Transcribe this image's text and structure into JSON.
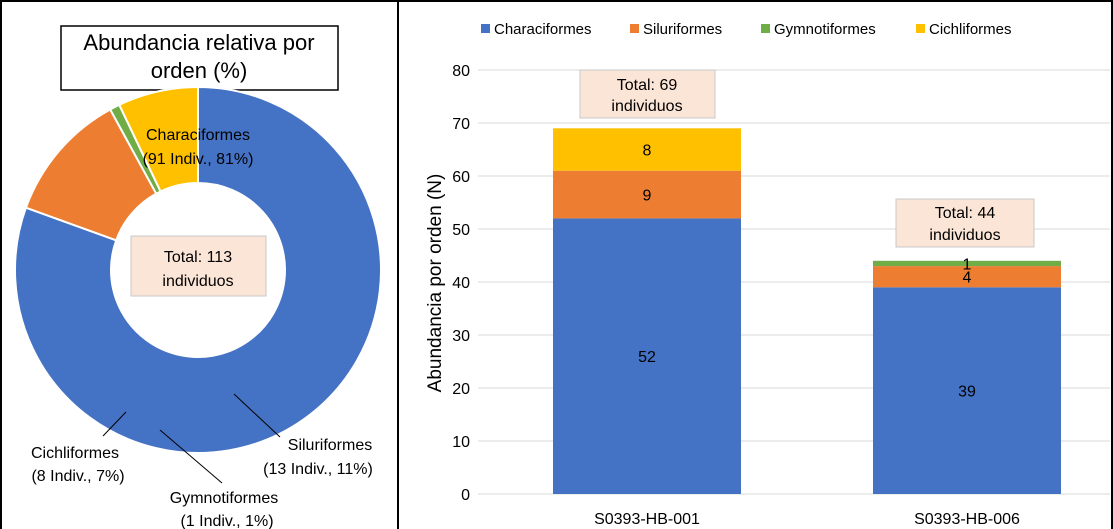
{
  "colors": {
    "Characiformes": "#4472C4",
    "Siluriformes": "#ED7D31",
    "Gymnotiformes": "#70AD47",
    "Cichliformes": "#FFC000",
    "total_box_fill": "#FBE5D6",
    "grid": "#D9D9D9"
  },
  "chart_data": [
    {
      "type": "pie",
      "style": "donut",
      "title": [
        "Abundancia relativa por",
        "orden (%)"
      ],
      "slices": [
        {
          "name": "Characiformes",
          "value": 91,
          "percent": 81,
          "label": [
            "Characiformes",
            "(91 Indiv., 81%)"
          ]
        },
        {
          "name": "Siluriformes",
          "value": 13,
          "percent": 11,
          "label": [
            "Siluriformes",
            "(13 Indiv., 11%)"
          ]
        },
        {
          "name": "Gymnotiformes",
          "value": 1,
          "percent": 1,
          "label": [
            "Gymnotiformes",
            "(1 Indiv., 1%)"
          ]
        },
        {
          "name": "Cichliformes",
          "value": 8,
          "percent": 7,
          "label": [
            "Cichliformes",
            "(8 Indiv., 7%)"
          ]
        }
      ],
      "center_label": [
        "Total: 113",
        "individuos"
      ]
    },
    {
      "type": "bar",
      "stacked": true,
      "categories": [
        "S0393-HB-001",
        "S0393-HB-006"
      ],
      "series": [
        {
          "name": "Characiformes",
          "values": [
            52,
            39
          ]
        },
        {
          "name": "Siluriformes",
          "values": [
            9,
            4
          ]
        },
        {
          "name": "Gymnotiformes",
          "values": [
            0,
            1
          ]
        },
        {
          "name": "Cichliformes",
          "values": [
            8,
            0
          ]
        }
      ],
      "ylabel": "Abundancia por orden (N)",
      "ylim": [
        0,
        80
      ],
      "yticks": [
        0,
        10,
        20,
        30,
        40,
        50,
        60,
        70,
        80
      ],
      "legend_position": "top",
      "grid": true,
      "totals": [
        [
          "Total: 69",
          "individuos"
        ],
        [
          "Total: 44",
          "individuos"
        ]
      ]
    }
  ]
}
